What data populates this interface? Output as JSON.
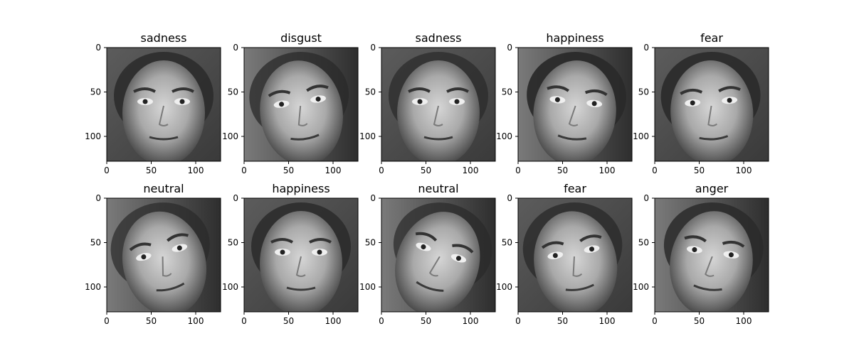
{
  "figure": {
    "panels": [
      {
        "title": "sadness"
      },
      {
        "title": "disgust"
      },
      {
        "title": "sadness"
      },
      {
        "title": "happiness"
      },
      {
        "title": "fear"
      },
      {
        "title": "neutral"
      },
      {
        "title": "happiness"
      },
      {
        "title": "neutral"
      },
      {
        "title": "fear"
      },
      {
        "title": "anger"
      }
    ],
    "axes": {
      "x_ticks": [
        "0",
        "50",
        "100"
      ],
      "y_ticks": [
        "0",
        "50",
        "100"
      ],
      "x_tick_values": [
        0,
        50,
        100
      ],
      "y_tick_values": [
        0,
        50,
        100
      ],
      "xlim": [
        0,
        128
      ],
      "ylim": [
        128,
        0
      ]
    }
  }
}
